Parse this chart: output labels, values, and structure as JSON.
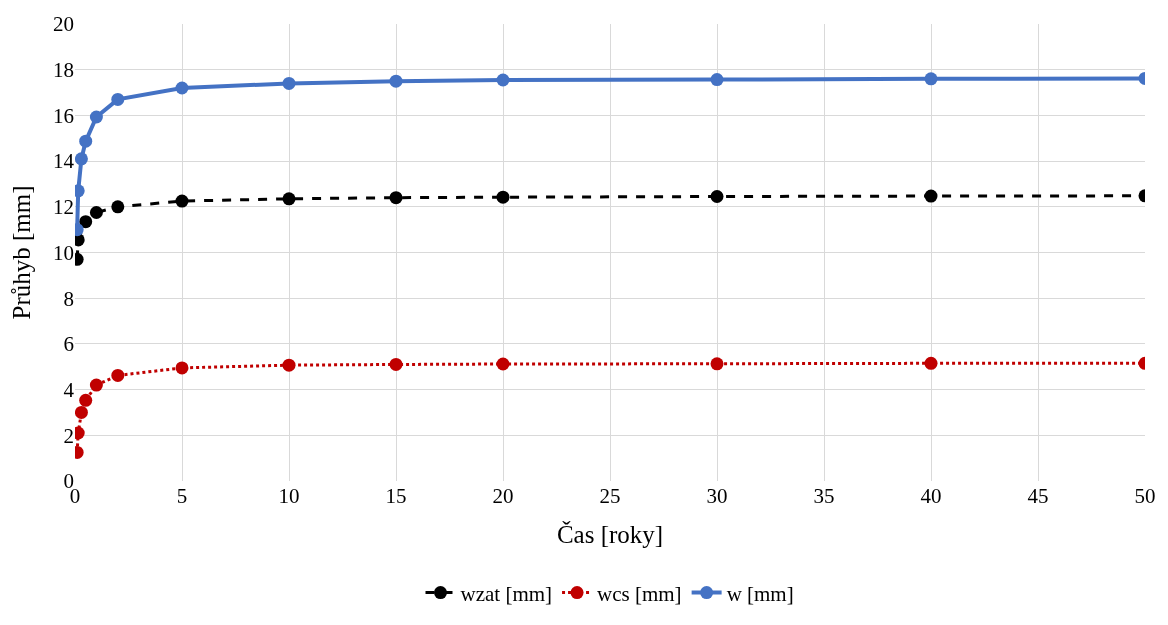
{
  "chart_data": {
    "type": "line",
    "xlabel": "Čas [roky]",
    "ylabel": "Průhyb [mm]",
    "x": [
      0.1,
      0.15,
      0.3,
      0.5,
      1,
      2,
      5,
      10,
      15,
      20,
      30,
      40,
      50
    ],
    "series": [
      {
        "name": "wzat [mm]",
        "color": "#000000",
        "line_style": "dashed",
        "values": [
          9.7,
          10.55,
          null,
          11.35,
          11.75,
          12.0,
          12.25,
          12.35,
          12.4,
          12.42,
          12.45,
          12.47,
          12.48
        ]
      },
      {
        "name": "wcs [mm]",
        "color": "#c00000",
        "line_style": "dotted",
        "values": [
          1.25,
          2.1,
          3.0,
          3.53,
          4.2,
          4.62,
          4.95,
          5.07,
          5.1,
          5.12,
          5.13,
          5.15,
          5.15
        ]
      },
      {
        "name": "w [mm]",
        "color": "#4472c4",
        "line_style": "solid",
        "values": [
          11.0,
          12.7,
          14.1,
          14.87,
          15.93,
          16.7,
          17.2,
          17.4,
          17.5,
          17.55,
          17.57,
          17.6,
          17.62
        ]
      }
    ],
    "xlim": [
      0,
      50
    ],
    "xticks": [
      0,
      5,
      10,
      15,
      20,
      25,
      30,
      35,
      40,
      45,
      50
    ],
    "ylim": [
      0,
      20
    ],
    "yticks": [
      0,
      2,
      4,
      6,
      8,
      10,
      12,
      14,
      16,
      18,
      20
    ],
    "grid": true,
    "legend": "bottom",
    "marker": "circle"
  }
}
